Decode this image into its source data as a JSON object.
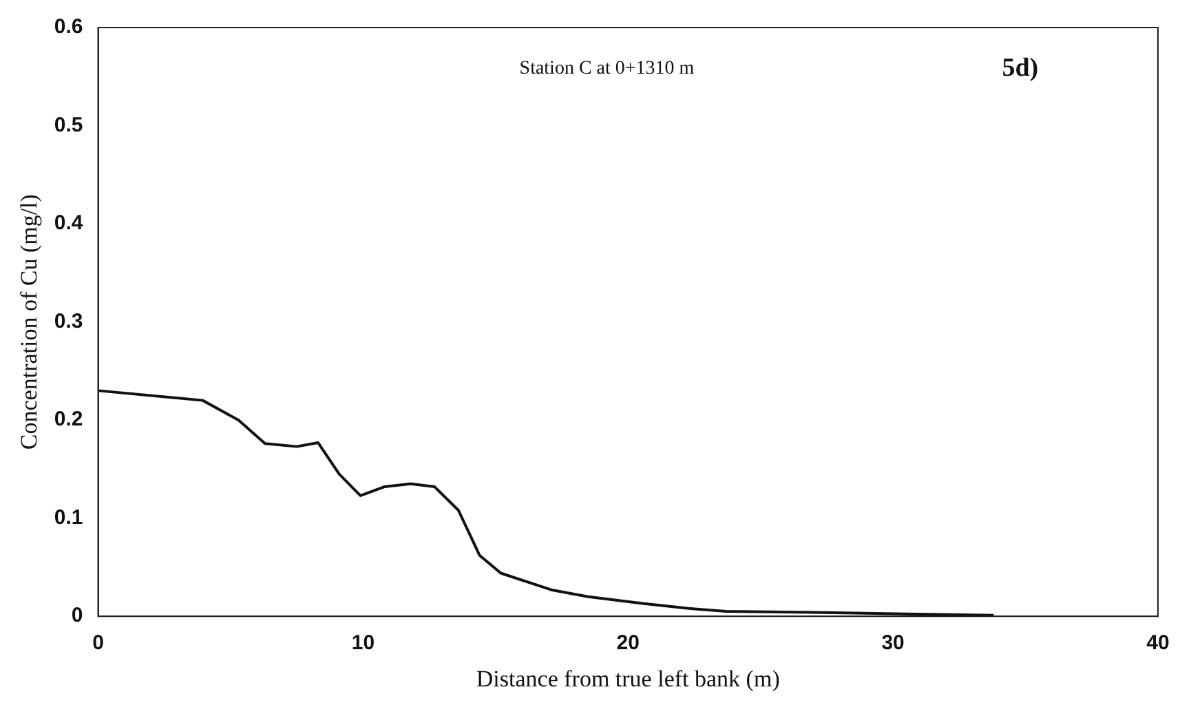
{
  "chart_data": {
    "type": "line",
    "xlabel": "Distance from true left bank (m)",
    "ylabel": "Concentration of Cu (mg/l)",
    "annotations": [
      "Station C at 0+1310 m",
      "5d)"
    ],
    "x": [
      0,
      3.95,
      5.3,
      6.3,
      7.5,
      8.3,
      9.1,
      9.9,
      10.8,
      11.8,
      12.7,
      13.6,
      14.4,
      15.2,
      17.1,
      18.5,
      20.6,
      22.3,
      23.7,
      27.0,
      31.3,
      33.8
    ],
    "series": [
      {
        "color": "#111111",
        "values": [
          0.23,
          0.22,
          0.2,
          0.176,
          0.173,
          0.177,
          0.145,
          0.123,
          0.132,
          0.135,
          0.132,
          0.108,
          0.062,
          0.044,
          0.027,
          0.02,
          0.013,
          0.008,
          0.005,
          0.004,
          0.002,
          0.001
        ]
      }
    ],
    "xlim": [
      0,
      40
    ],
    "xticks": [
      0,
      10,
      20,
      30,
      40
    ],
    "ylim": [
      0,
      0.6
    ],
    "yticks": [
      0,
      0.1,
      0.2,
      0.3,
      0.4,
      0.5,
      0.6
    ],
    "grid": false,
    "legend": false,
    "marker": "none",
    "line_style": "solid"
  }
}
